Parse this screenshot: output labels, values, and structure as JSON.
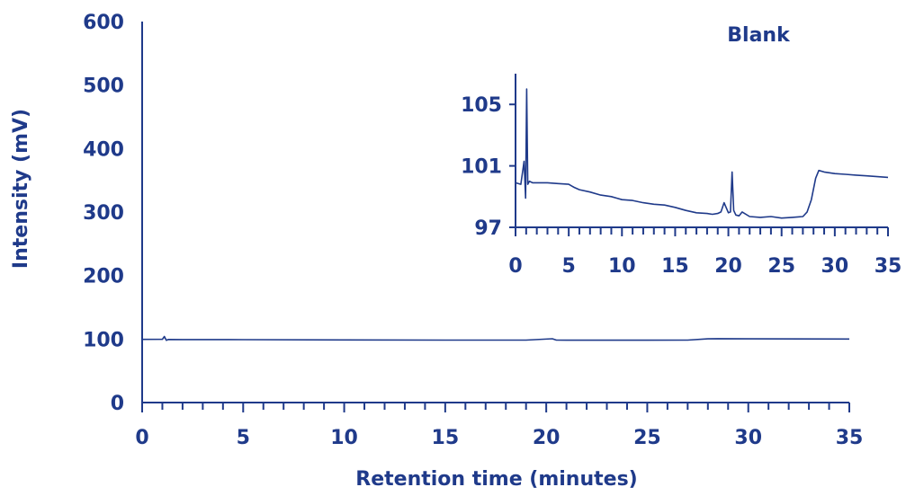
{
  "chart_data": [
    {
      "type": "line",
      "title": "",
      "xlabel": "Retention time (minutes)",
      "ylabel": "Intensity (mV)",
      "xlim": [
        0,
        35
      ],
      "ylim": [
        0,
        600
      ],
      "x_ticks": [
        0,
        5,
        10,
        15,
        20,
        25,
        30,
        35
      ],
      "y_ticks": [
        0,
        100,
        200,
        300,
        400,
        500,
        600
      ],
      "grid": false,
      "series": [
        {
          "color": "#1f3a8a",
          "x": [
            0,
            1.0,
            1.1,
            1.2,
            1.3,
            2,
            5,
            10,
            15,
            19,
            20.3,
            20.5,
            21,
            25,
            27,
            28,
            28.5,
            30,
            35
          ],
          "y": [
            99.5,
            99.6,
            104,
            98,
            99.3,
            99.2,
            99.0,
            98.7,
            98.4,
            98.3,
            100.5,
            98.4,
            98.2,
            98.2,
            98.4,
            100.3,
            100.6,
            100.4,
            100.1
          ]
        }
      ]
    },
    {
      "type": "line",
      "title": "Blank",
      "xlabel": "",
      "ylabel": "",
      "xlim": [
        0,
        35
      ],
      "ylim": [
        97,
        107
      ],
      "x_ticks": [
        0,
        5,
        10,
        15,
        20,
        25,
        30,
        35
      ],
      "y_ticks": [
        97,
        101,
        105
      ],
      "grid": false,
      "series": [
        {
          "color": "#1f3a8a",
          "x": [
            0,
            0.5,
            0.8,
            0.95,
            1.05,
            1.15,
            1.3,
            1.6,
            2,
            3,
            4,
            5,
            5.5,
            6,
            7,
            8,
            9,
            9.5,
            10,
            11,
            12,
            13,
            14,
            15,
            16,
            17,
            18,
            18.5,
            19,
            19.3,
            19.6,
            20,
            20.2,
            20.35,
            20.5,
            20.7,
            21,
            21.3,
            22,
            23,
            24,
            25,
            26,
            27,
            27.4,
            27.8,
            28.2,
            28.5,
            29,
            30,
            31,
            32,
            33,
            34,
            35
          ],
          "y": [
            99.9,
            99.8,
            101.3,
            98.9,
            106.0,
            99.8,
            100.0,
            99.9,
            99.9,
            99.9,
            99.85,
            99.8,
            99.6,
            99.45,
            99.3,
            99.1,
            99.0,
            98.9,
            98.8,
            98.75,
            98.6,
            98.5,
            98.45,
            98.3,
            98.1,
            97.95,
            97.9,
            97.85,
            97.9,
            98.0,
            98.6,
            97.95,
            98.0,
            100.6,
            98.1,
            97.8,
            97.75,
            98.0,
            97.7,
            97.65,
            97.7,
            97.6,
            97.65,
            97.7,
            98.0,
            98.8,
            100.2,
            100.7,
            100.6,
            100.5,
            100.45,
            100.4,
            100.35,
            100.3,
            100.25
          ]
        }
      ]
    }
  ]
}
